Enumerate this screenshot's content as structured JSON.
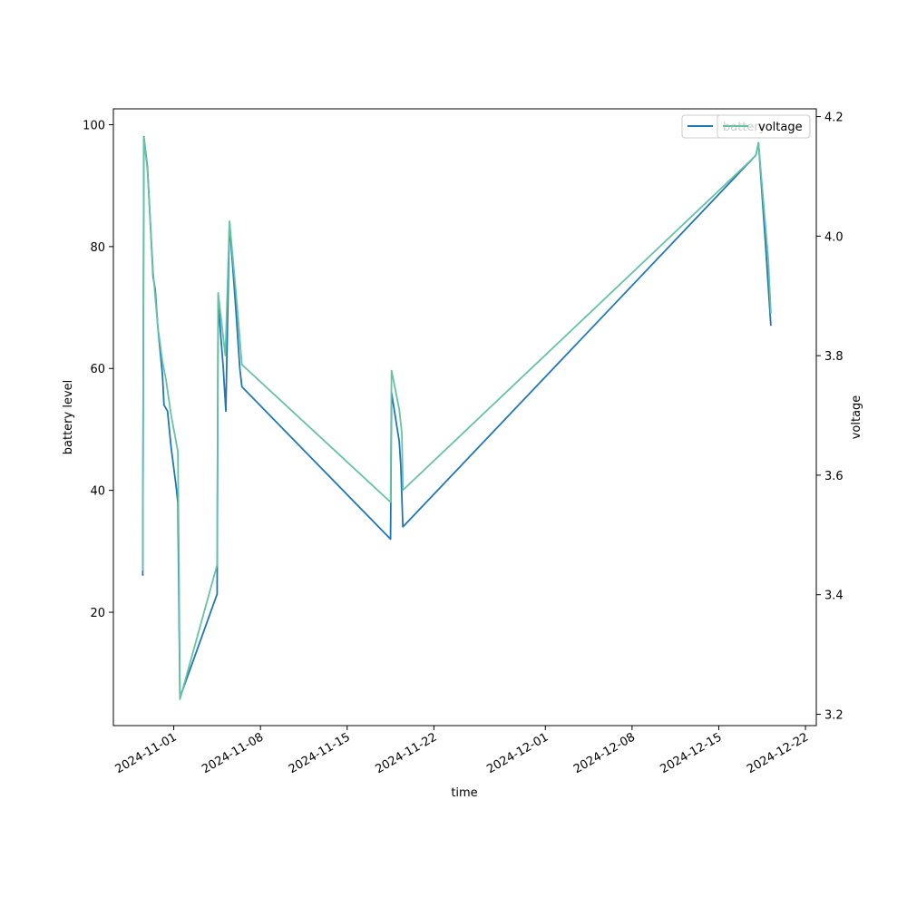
{
  "chart_data": {
    "type": "line",
    "title": "",
    "xlabel": "time",
    "ylabel": "battery level",
    "y2label": "voltage",
    "xlim": [
      "2024-10-27T03:00",
      "2024-12-22T21:00"
    ],
    "ylim": [
      1.4,
      102.6
    ],
    "y2lim": [
      3.181,
      4.213
    ],
    "x_ticks": [
      "2024-11-01",
      "2024-11-08",
      "2024-11-15",
      "2024-11-22",
      "2024-12-01",
      "2024-12-08",
      "2024-12-15",
      "2024-12-22"
    ],
    "y_ticks": [
      20,
      40,
      60,
      80,
      100
    ],
    "y2_ticks": [
      3.2,
      3.4,
      3.6,
      3.8,
      4.0,
      4.2
    ],
    "legend_placement": "top-right",
    "grid": false,
    "series": [
      {
        "name": "battery",
        "axis": "left",
        "color": "#1f77b4",
        "points": [
          [
            "2024-10-29T12:00",
            26
          ],
          [
            "2024-10-29T14:00",
            98
          ],
          [
            "2024-10-29T21:00",
            93
          ],
          [
            "2024-10-30T08:00",
            75
          ],
          [
            "2024-10-30T12:00",
            73
          ],
          [
            "2024-10-30T17:00",
            67
          ],
          [
            "2024-10-31T02:00",
            59
          ],
          [
            "2024-10-31T05:00",
            54
          ],
          [
            "2024-10-31T12:00",
            53
          ],
          [
            "2024-10-31T19:00",
            47
          ],
          [
            "2024-11-01T04:00",
            41
          ],
          [
            "2024-11-01T08:00",
            38
          ],
          [
            "2024-11-01T12:00",
            6
          ],
          [
            "2024-11-04T12:00",
            23
          ],
          [
            "2024-11-04T14:00",
            71
          ],
          [
            "2024-11-05T00:00",
            60
          ],
          [
            "2024-11-05T05:00",
            53
          ],
          [
            "2024-11-05T12:00",
            84
          ],
          [
            "2024-11-06T00:00",
            70
          ],
          [
            "2024-11-06T08:00",
            60
          ],
          [
            "2024-11-06T12:00",
            57
          ],
          [
            "2024-11-18T12:00",
            32
          ],
          [
            "2024-11-18T14:00",
            56
          ],
          [
            "2024-11-19T05:00",
            48
          ],
          [
            "2024-11-19T08:00",
            44
          ],
          [
            "2024-11-19T12:00",
            34
          ],
          [
            "2024-12-18T00:00",
            95
          ],
          [
            "2024-12-18T05:00",
            97
          ],
          [
            "2024-12-18T19:00",
            80
          ],
          [
            "2024-12-19T05:00",
            67
          ]
        ]
      },
      {
        "name": "voltage",
        "axis": "right",
        "color": "#66c2a5",
        "points": [
          [
            "2024-10-29T12:00",
            3.44
          ],
          [
            "2024-10-29T14:00",
            4.165
          ],
          [
            "2024-10-29T21:00",
            4.11
          ],
          [
            "2024-10-30T08:00",
            3.94
          ],
          [
            "2024-10-30T17:00",
            3.85
          ],
          [
            "2024-10-31T02:00",
            3.79
          ],
          [
            "2024-10-31T09:00",
            3.76
          ],
          [
            "2024-10-31T19:00",
            3.7
          ],
          [
            "2024-11-01T08:00",
            3.64
          ],
          [
            "2024-11-01T10:00",
            3.45
          ],
          [
            "2024-11-01T12:00",
            3.225
          ],
          [
            "2024-11-04T12:00",
            3.45
          ],
          [
            "2024-11-04T14:00",
            3.905
          ],
          [
            "2024-11-05T04:00",
            3.8
          ],
          [
            "2024-11-05T12:00",
            4.025
          ],
          [
            "2024-11-06T00:00",
            3.91
          ],
          [
            "2024-11-06T12:00",
            3.785
          ],
          [
            "2024-11-18T12:00",
            3.555
          ],
          [
            "2024-11-18T14:00",
            3.775
          ],
          [
            "2024-11-19T05:00",
            3.71
          ],
          [
            "2024-11-19T10:00",
            3.67
          ],
          [
            "2024-11-19T12:00",
            3.575
          ],
          [
            "2024-12-18T00:00",
            4.135
          ],
          [
            "2024-12-18T05:00",
            4.155
          ],
          [
            "2024-12-19T00:00",
            3.96
          ],
          [
            "2024-12-19T05:00",
            3.87
          ]
        ]
      }
    ]
  }
}
